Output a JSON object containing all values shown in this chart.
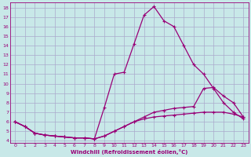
{
  "xlabel": "Windchill (Refroidissement éolien,°C)",
  "bg_color": "#c8e8e8",
  "grid_color": "#aaaacc",
  "line_color": "#990077",
  "xlim": [
    -0.5,
    23.5
  ],
  "ylim": [
    3.8,
    18.5
  ],
  "xticks": [
    0,
    1,
    2,
    3,
    4,
    5,
    6,
    7,
    8,
    9,
    10,
    11,
    12,
    13,
    14,
    15,
    16,
    17,
    18,
    19,
    20,
    21,
    22,
    23
  ],
  "yticks": [
    4,
    5,
    6,
    7,
    8,
    9,
    10,
    11,
    12,
    13,
    14,
    15,
    16,
    17,
    18
  ],
  "line1_x": [
    0,
    1,
    2,
    3,
    4,
    5,
    6,
    7,
    8,
    9,
    10,
    11,
    12,
    13,
    14,
    15,
    16,
    17,
    18,
    19,
    20,
    21,
    22,
    23
  ],
  "line1_y": [
    6.0,
    5.5,
    4.8,
    4.6,
    4.5,
    4.4,
    4.3,
    4.3,
    4.2,
    4.5,
    5.0,
    5.5,
    6.0,
    6.5,
    7.0,
    7.2,
    7.4,
    7.5,
    7.6,
    9.5,
    9.6,
    8.7,
    8.0,
    6.5
  ],
  "line2_x": [
    0,
    1,
    2,
    3,
    4,
    5,
    6,
    7,
    8,
    9,
    10,
    11,
    12,
    13,
    14,
    15,
    16,
    17,
    18,
    19,
    20,
    21,
    22,
    23
  ],
  "line2_y": [
    6.0,
    5.5,
    4.8,
    4.6,
    4.5,
    4.4,
    4.3,
    4.3,
    4.2,
    7.5,
    11.0,
    11.2,
    14.2,
    17.2,
    18.1,
    16.6,
    16.0,
    14.0,
    12.0,
    11.0,
    9.5,
    8.0,
    7.0,
    6.3
  ],
  "line3_x": [
    0,
    1,
    2,
    3,
    4,
    5,
    6,
    7,
    8,
    9,
    10,
    11,
    12,
    13,
    14,
    15,
    16,
    17,
    18,
    19,
    20,
    21,
    22,
    23
  ],
  "line3_y": [
    6.0,
    5.5,
    4.8,
    4.6,
    4.5,
    4.4,
    4.3,
    4.3,
    4.2,
    4.5,
    5.0,
    5.5,
    6.0,
    6.3,
    6.5,
    6.6,
    6.7,
    6.8,
    6.9,
    7.0,
    7.0,
    7.0,
    6.8,
    6.5
  ]
}
